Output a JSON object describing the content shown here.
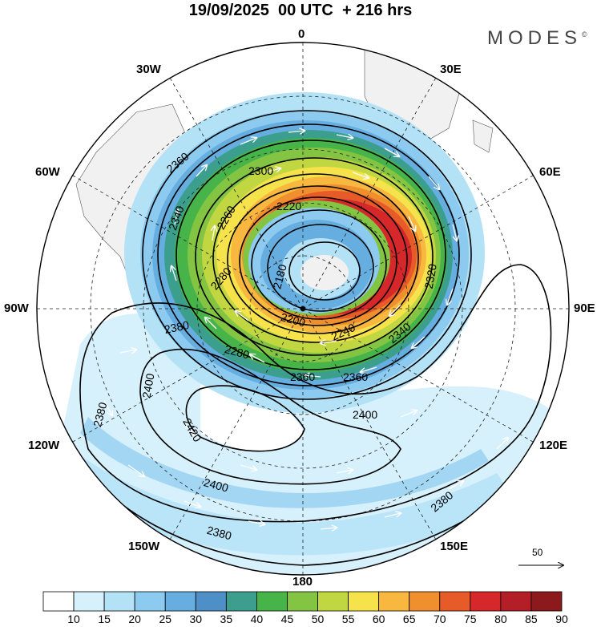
{
  "title": "19/09/2025  00 UTC  + 216 hrs",
  "brand": "MODES",
  "brand_mark": "©",
  "longitude_labels": {
    "top": "0",
    "top_left": "30W",
    "top_right": "30E",
    "left_upper": "60W",
    "right_upper": "60E",
    "left": "90W",
    "right": "90E",
    "left_lower": "120W",
    "right_lower": "120E",
    "bottom_left": "150W",
    "bottom_right": "150E",
    "bottom": "180"
  },
  "contour_labels": [
    "2360",
    "2300",
    "2340",
    "2220",
    "2260",
    "2180",
    "2280",
    "2320",
    "2200",
    "2240",
    "2340",
    "2380",
    "2280",
    "2400",
    "2360",
    "2360",
    "2380",
    "2420",
    "2400",
    "2400",
    "2380",
    "2380"
  ],
  "reference_vector": {
    "label": "50"
  },
  "colorbar": {
    "labels": [
      "10",
      "15",
      "20",
      "25",
      "30",
      "35",
      "40",
      "45",
      "50",
      "55",
      "60",
      "65",
      "70",
      "75",
      "80",
      "85",
      "90"
    ],
    "colors": [
      "#ffffff",
      "#d6f0fc",
      "#b3e2f7",
      "#8ccbef",
      "#66aee0",
      "#4f8fc8",
      "#3c9f8e",
      "#46b449",
      "#83c443",
      "#c0d741",
      "#f6e24b",
      "#f8b83f",
      "#f08f2d",
      "#e65b27",
      "#d6282a",
      "#b41f27",
      "#8c1a1d"
    ]
  }
}
